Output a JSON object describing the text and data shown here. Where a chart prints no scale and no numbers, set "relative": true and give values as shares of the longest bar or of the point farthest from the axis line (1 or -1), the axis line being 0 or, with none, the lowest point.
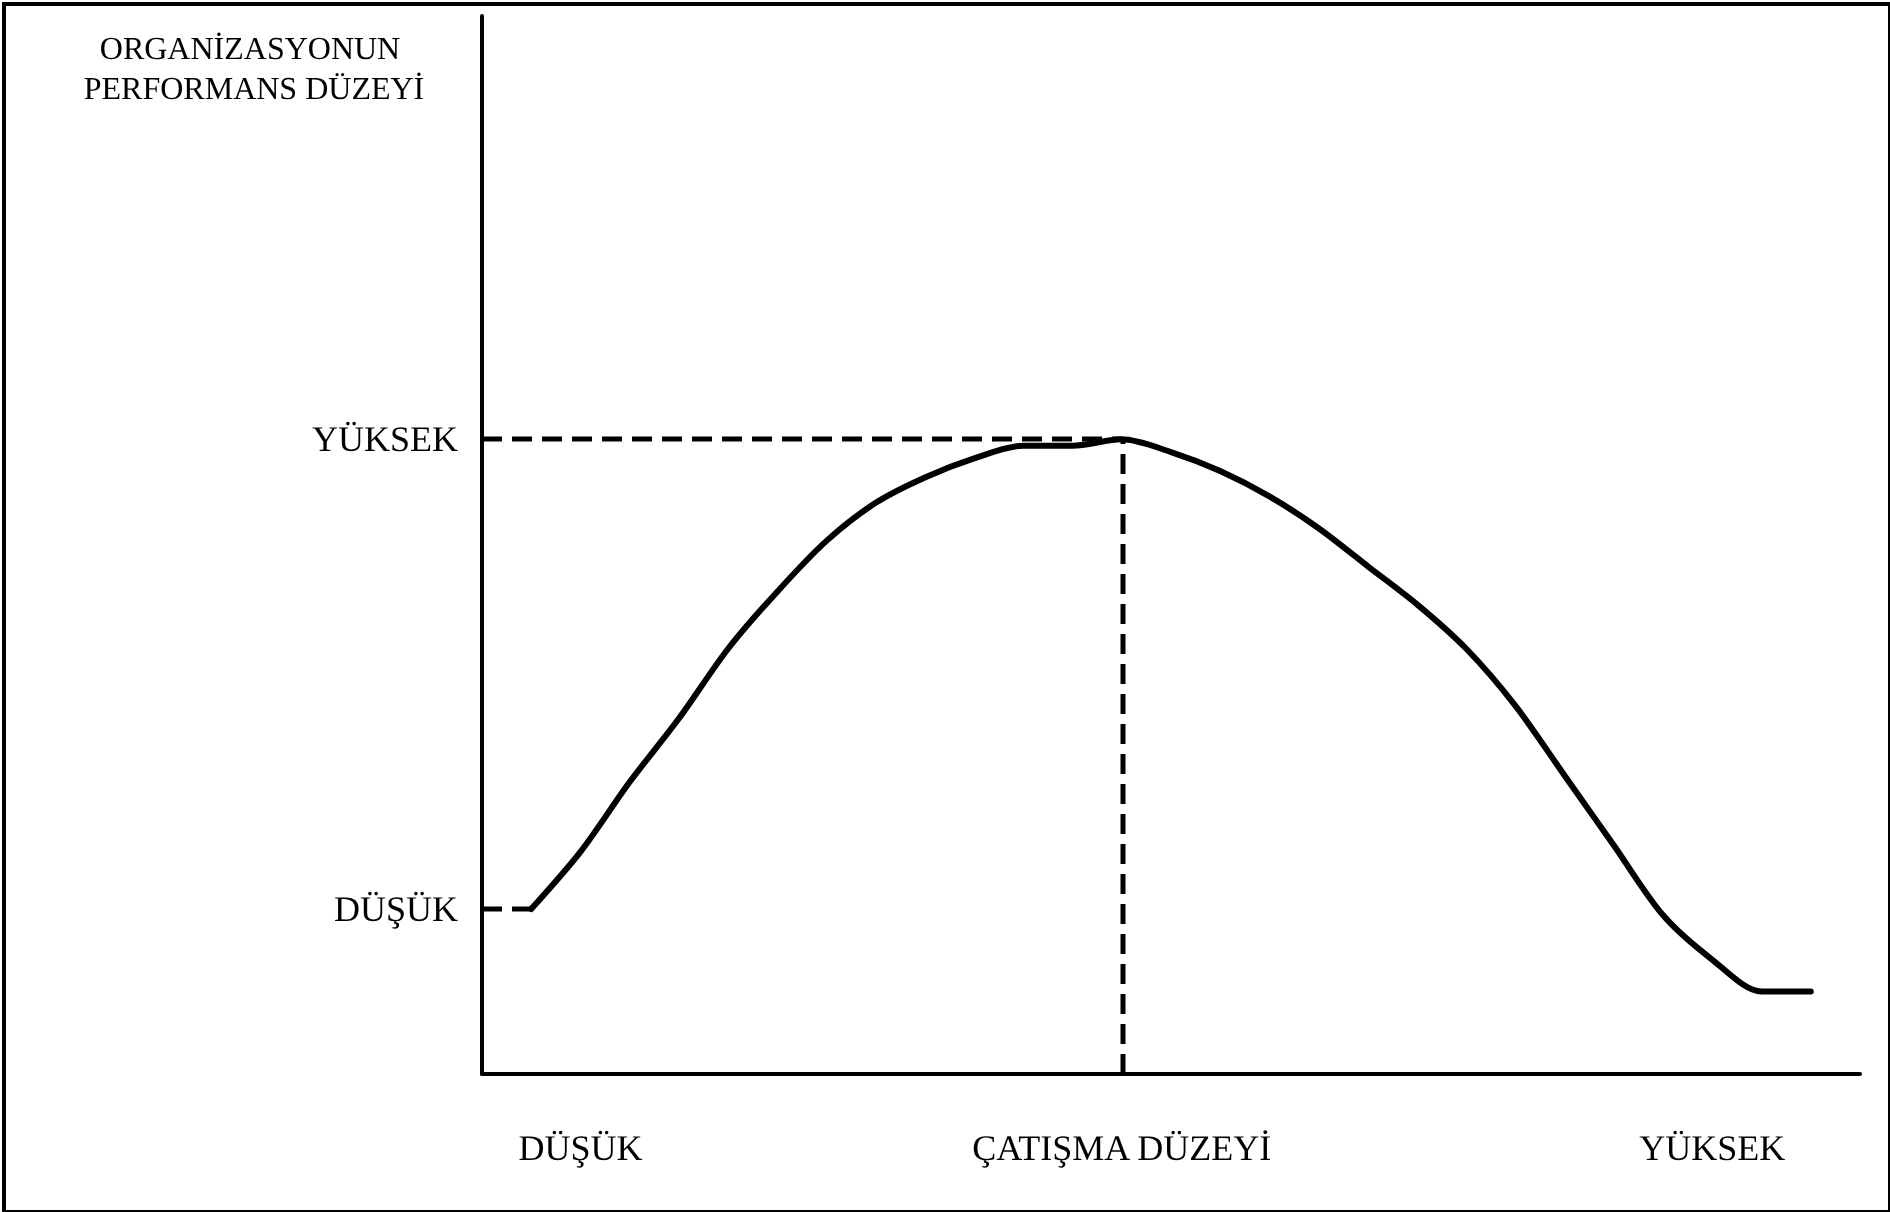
{
  "chart_data": {
    "type": "line",
    "relative": true,
    "annotations": [
      "ORGANİZASYONUN PERFORMANS DÜZEYİ"
    ],
    "categories": [
      null,
      null,
      "DÜŞÜK",
      null,
      null,
      null,
      null,
      null,
      null,
      null,
      null,
      null,
      null,
      "ÇATIŞMA DÜZEYİ",
      null,
      null,
      null,
      null,
      null,
      null,
      null,
      null,
      null,
      null,
      null,
      "YÜKSEK",
      null,
      null,
      null
    ],
    "series": [
      {
        "color": "#000000",
        "values": [
          null,
          0.26,
          0.35,
          0.46,
          0.56,
          0.67,
          0.76,
          0.84,
          0.9,
          0.94,
          0.97,
          0.99,
          0.99,
          1.0,
          0.98,
          0.95,
          0.91,
          0.86,
          0.8,
          0.74,
          0.67,
          0.58,
          0.47,
          0.36,
          0.25,
          0.18,
          0.13,
          0.13,
          null
        ]
      }
    ],
    "ref_lines": [
      {
        "axis": "y",
        "value": 1.0,
        "label": "YÜKSEK",
        "line_style": "dashed",
        "color": "#000000"
      },
      {
        "axis": "y",
        "value": 0.26,
        "label": "DÜŞÜK",
        "line_style": "dashed",
        "color": "#000000"
      },
      {
        "axis": "x",
        "value": "ÇATIŞMA DÜZEYİ",
        "line_style": "dashed",
        "color": "#000000"
      }
    ],
    "marker": "none",
    "line_style": "solid",
    "grid": false
  }
}
